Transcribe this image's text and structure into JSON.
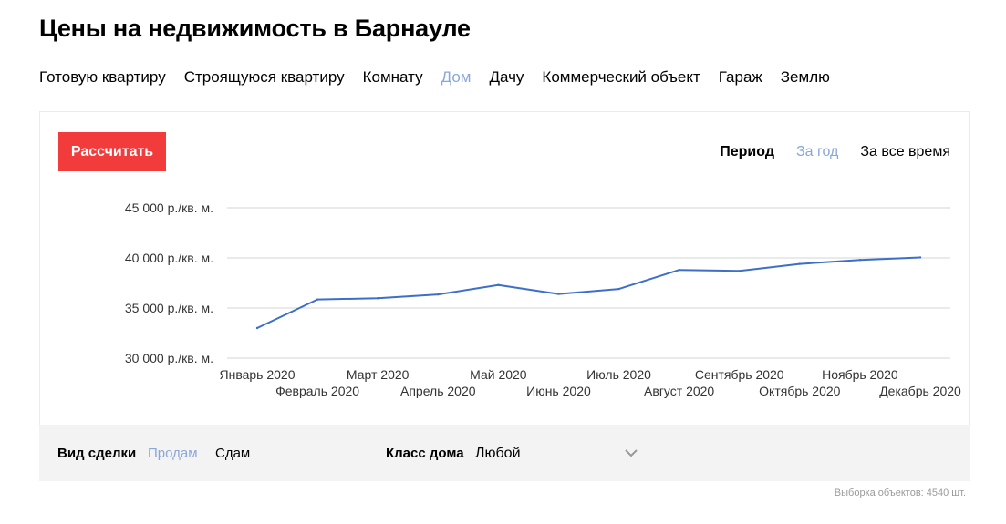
{
  "title": "Цены на недвижимость в Барнауле",
  "property_types": [
    {
      "label": "Готовую квартиру",
      "active": false
    },
    {
      "label": "Строящуюся квартиру",
      "active": false
    },
    {
      "label": "Комнату",
      "active": false
    },
    {
      "label": "Дом",
      "active": true
    },
    {
      "label": "Дачу",
      "active": false
    },
    {
      "label": "Коммерческий объект",
      "active": false
    },
    {
      "label": "Гараж",
      "active": false
    },
    {
      "label": "Землю",
      "active": false
    }
  ],
  "calc_button": "Рассчитать",
  "period": {
    "label": "Период",
    "options": [
      {
        "label": "За год",
        "active": true
      },
      {
        "label": "За все время",
        "active": false
      }
    ]
  },
  "chart_data": {
    "type": "line",
    "title": "",
    "xlabel": "",
    "ylabel": "",
    "ylim": [
      30000,
      45000
    ],
    "y_ticks": [
      {
        "value": 45000,
        "label": "45 000 р./кв. м."
      },
      {
        "value": 40000,
        "label": "40 000 р./кв. м."
      },
      {
        "value": 35000,
        "label": "35 000 р./кв. м."
      },
      {
        "value": 30000,
        "label": "30 000 р./кв. м."
      }
    ],
    "categories": [
      "Январь 2020",
      "Февраль 2020",
      "Март 2020",
      "Апрель 2020",
      "Май 2020",
      "Июнь 2020",
      "Июль 2020",
      "Август 2020",
      "Сентябрь 2020",
      "Октябрь 2020",
      "Ноябрь 2020",
      "Декабрь 2020"
    ],
    "series": [
      {
        "values": [
          33000,
          35850,
          35980,
          36350,
          37300,
          36400,
          36900,
          38800,
          38700,
          39400,
          39800,
          40050
        ]
      }
    ],
    "grid": true,
    "legend": "none",
    "line_color": "#3d6fc9"
  },
  "filters": {
    "deal_label": "Вид сделки",
    "deal_options": [
      {
        "label": "Продам",
        "active": true
      },
      {
        "label": "Сдам",
        "active": false
      }
    ],
    "class_label": "Класс дома",
    "class_value": "Любой"
  },
  "sample_count": "Выборка объектов: 4540 шт."
}
